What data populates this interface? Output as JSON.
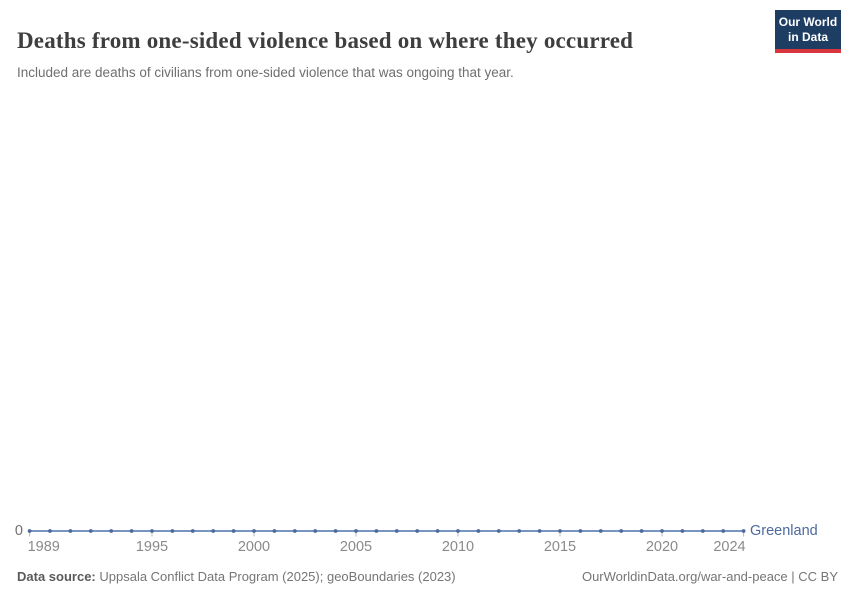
{
  "header": {
    "title": "Deaths from one-sided violence based on where they occurred",
    "subtitle": "Included are deaths of civilians from one-sided violence that was ongoing that year."
  },
  "logo": {
    "line1": "Our World",
    "line2": "in Data"
  },
  "colors": {
    "line": "#6584b8",
    "marker": "#4c6a9c",
    "entity_label": "#4c6a9c",
    "tick_mark": "#b9b9b9",
    "tick_label": "#8a8a8a",
    "logo_bg": "#1d3d63",
    "logo_accent": "#d7363f"
  },
  "y_axis": {
    "zero_label": "0"
  },
  "entity_label": "Greenland",
  "chart_data": {
    "type": "line",
    "title": "Deaths from one-sided violence based on where they occurred",
    "subtitle": "Included are deaths of civilians from one-sided violence that was ongoing that year.",
    "xlabel": "",
    "ylabel": "",
    "grid": false,
    "legend_position": "end-of-line",
    "x_range": [
      1989,
      2024
    ],
    "ylim": [
      0,
      1
    ],
    "x_ticks": [
      1989,
      1995,
      2000,
      2005,
      2010,
      2015,
      2020,
      2024
    ],
    "x_tick_labels": [
      "1989",
      "1995",
      "2000",
      "2005",
      "2010",
      "2015",
      "2020",
      "2024"
    ],
    "y_ticks": [
      0
    ],
    "y_tick_labels": [
      "0"
    ],
    "x": [
      1989,
      1990,
      1991,
      1992,
      1993,
      1994,
      1995,
      1996,
      1997,
      1998,
      1999,
      2000,
      2001,
      2002,
      2003,
      2004,
      2005,
      2006,
      2007,
      2008,
      2009,
      2010,
      2011,
      2012,
      2013,
      2014,
      2015,
      2016,
      2017,
      2018,
      2019,
      2020,
      2021,
      2022,
      2023,
      2024
    ],
    "series": [
      {
        "name": "Greenland",
        "values": [
          0,
          0,
          0,
          0,
          0,
          0,
          0,
          0,
          0,
          0,
          0,
          0,
          0,
          0,
          0,
          0,
          0,
          0,
          0,
          0,
          0,
          0,
          0,
          0,
          0,
          0,
          0,
          0,
          0,
          0,
          0,
          0,
          0,
          0,
          0,
          0
        ]
      }
    ]
  },
  "footer": {
    "source_label": "Data source:",
    "source_text": " Uppsala Conflict Data Program (2025); geoBoundaries (2023)",
    "credit": "OurWorldinData.org/war-and-peace | CC BY"
  }
}
